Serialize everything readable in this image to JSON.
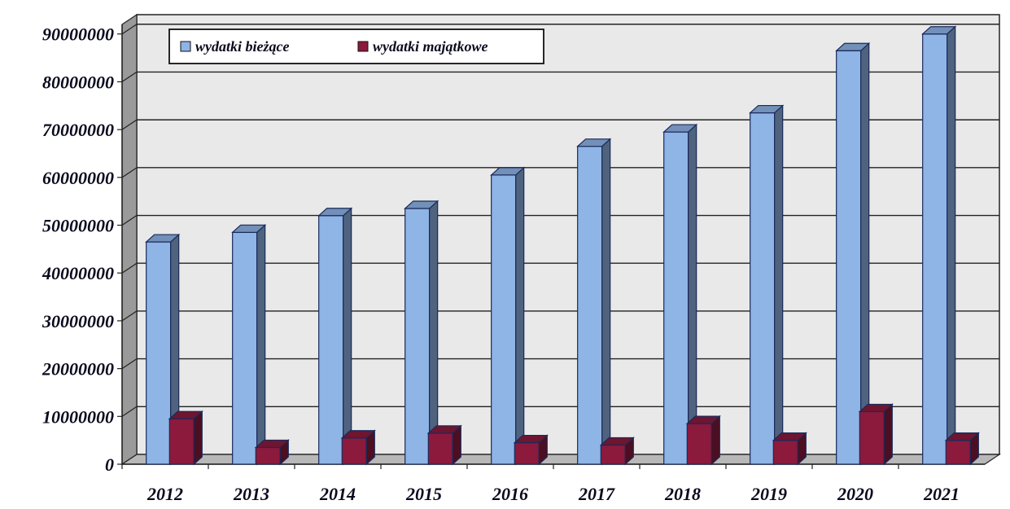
{
  "chart_data": {
    "type": "bar",
    "title": "",
    "xlabel": "",
    "ylabel": "",
    "categories": [
      "2012",
      "2013",
      "2014",
      "2015",
      "2016",
      "2017",
      "2018",
      "2019",
      "2020",
      "2021"
    ],
    "series": [
      {
        "name": "wydatki bieżące",
        "color": "#8fb4e6",
        "values": [
          46500000,
          48500000,
          52000000,
          53500000,
          60500000,
          66500000,
          69500000,
          73500000,
          86500000,
          90000000
        ]
      },
      {
        "name": "wydatki majątkowe",
        "color": "#8b1a3c",
        "values": [
          9500000,
          3500000,
          5500000,
          6500000,
          4500000,
          4000000,
          8500000,
          5000000,
          11000000,
          5000000
        ]
      }
    ],
    "y_ticks": [
      "0",
      "10000000",
      "20000000",
      "30000000",
      "40000000",
      "50000000",
      "60000000",
      "70000000",
      "80000000",
      "90000000"
    ],
    "ylim": [
      0,
      92000000
    ],
    "grid": true,
    "legend_position": "top-left",
    "style": "3d-bars"
  }
}
